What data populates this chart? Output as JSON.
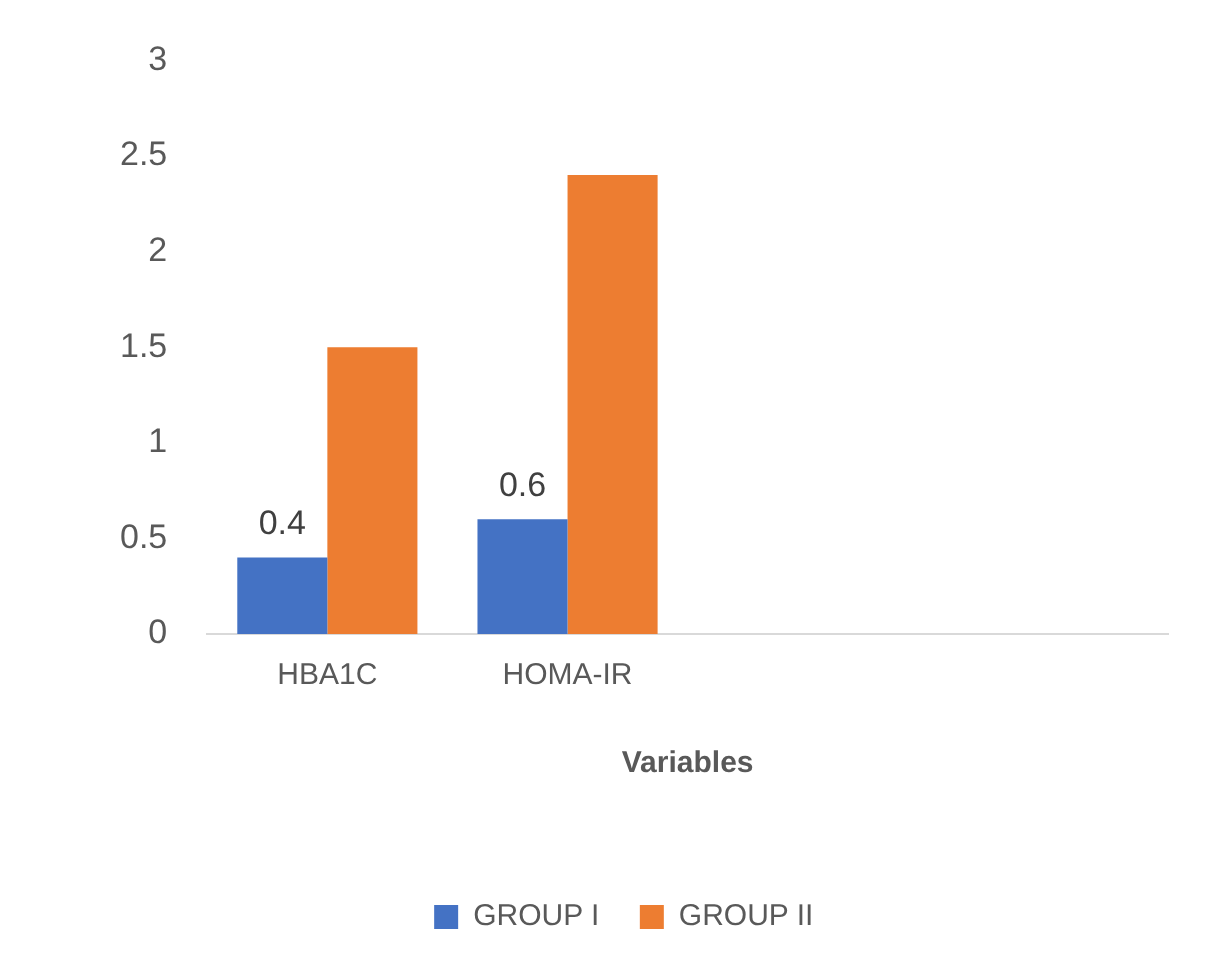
{
  "chart_data": {
    "type": "bar",
    "xlabel": "Variables",
    "categories": [
      "HBA1C",
      "HOMA-IR",
      null,
      null
    ],
    "series": [
      {
        "name": "GROUP I",
        "color": "#4472c4",
        "values": [
          0.4,
          0.6,
          null,
          null
        ],
        "value_labels": [
          "0.4",
          "0.6",
          null,
          null
        ]
      },
      {
        "name": "GROUP II",
        "color": "#ed7d31",
        "values": [
          1.5,
          2.4,
          null,
          null
        ]
      }
    ],
    "ylim": [
      0,
      3
    ],
    "yticks": [
      0,
      0.5,
      1,
      1.5,
      2,
      2.5,
      3
    ],
    "grid": false,
    "legend": "bottom"
  }
}
